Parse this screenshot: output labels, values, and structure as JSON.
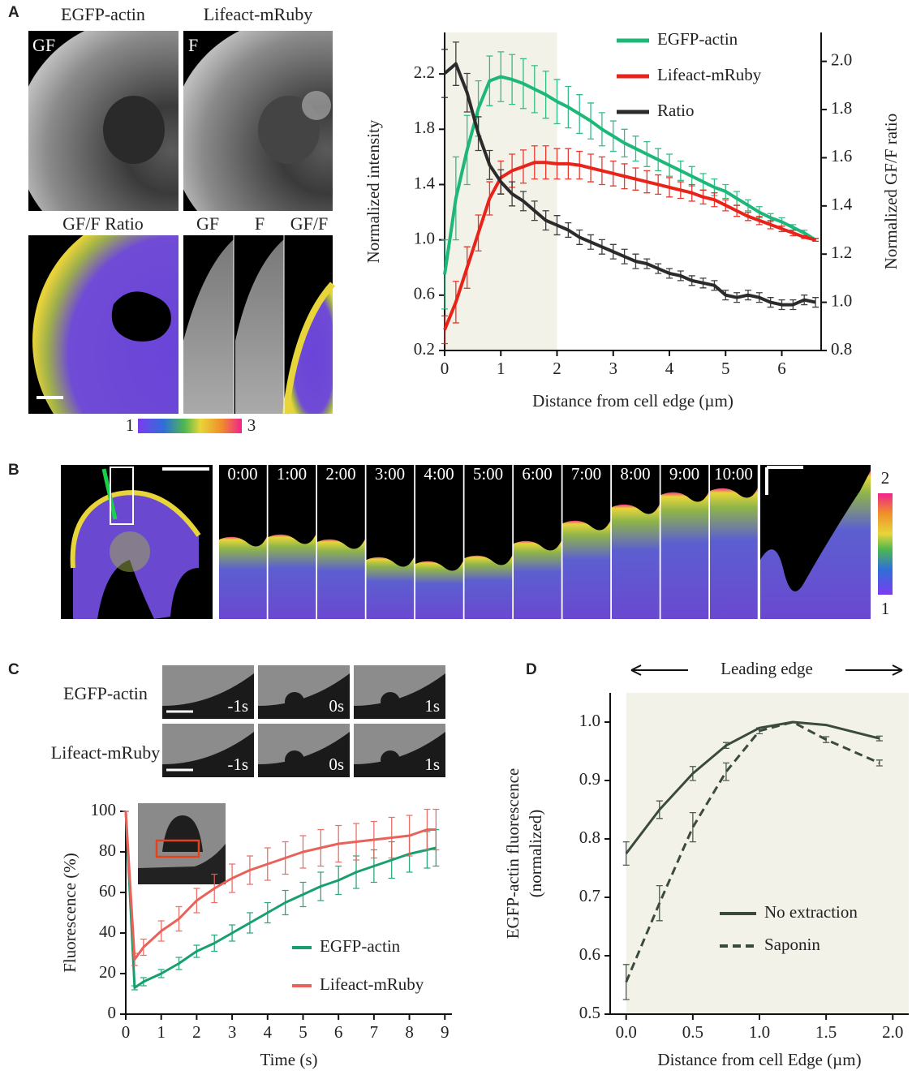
{
  "panel_labels": [
    "A",
    "B",
    "C",
    "D"
  ],
  "panel_a_images": {
    "top": [
      "EGFP-actin",
      "Lifeact-mRuby"
    ],
    "insets": [
      "GF",
      "F"
    ],
    "ratio_title": "GF/F Ratio",
    "kymo": [
      "GF",
      "F",
      "GF/F"
    ],
    "colorbar": [
      1,
      3
    ]
  },
  "panel_b": {
    "times": [
      "0:00",
      "1:00",
      "2:00",
      "3:00",
      "4:00",
      "5:00",
      "6:00",
      "7:00",
      "8:00",
      "9:00",
      "10:00"
    ],
    "colorbar": [
      2,
      1
    ]
  },
  "panel_c_images": {
    "rows": [
      "EGFP-actin",
      "Lifeact-mRuby"
    ],
    "times": [
      "-1s",
      "0s",
      "1s"
    ]
  },
  "chart_data": [
    {
      "type": "line",
      "xlabel": "Distance from cell edge (µm)",
      "ylabel": "Normalized intensity",
      "y2label": "Normalized GF/F ratio",
      "x": [
        0,
        0.2,
        0.4,
        0.6,
        0.8,
        1.0,
        1.2,
        1.4,
        1.6,
        1.8,
        2.0,
        2.2,
        2.4,
        2.6,
        2.8,
        3.0,
        3.2,
        3.4,
        3.6,
        3.8,
        4.0,
        4.2,
        4.4,
        4.6,
        4.8,
        5.0,
        5.2,
        5.4,
        5.6,
        5.8,
        6.0,
        6.2,
        6.4,
        6.6
      ],
      "series": [
        {
          "name": "EGFP-actin",
          "color": "#1db77a",
          "values": [
            0.75,
            1.3,
            1.65,
            1.95,
            2.15,
            2.18,
            2.16,
            2.13,
            2.09,
            2.05,
            2.0,
            1.96,
            1.91,
            1.86,
            1.8,
            1.75,
            1.7,
            1.66,
            1.62,
            1.58,
            1.54,
            1.5,
            1.46,
            1.42,
            1.38,
            1.35,
            1.3,
            1.25,
            1.2,
            1.16,
            1.13,
            1.09,
            1.05,
            1.0
          ],
          "errors": [
            0.25,
            0.3,
            0.25,
            0.2,
            0.18,
            0.18,
            0.18,
            0.18,
            0.17,
            0.17,
            0.16,
            0.15,
            0.14,
            0.13,
            0.12,
            0.11,
            0.1,
            0.09,
            0.09,
            0.08,
            0.08,
            0.07,
            0.07,
            0.06,
            0.06,
            0.05,
            0.05,
            0.04,
            0.04,
            0.03,
            0.03,
            0.02,
            0.02,
            0.01
          ]
        },
        {
          "name": "Lifeact-mRuby",
          "color": "#e8231a",
          "values": [
            0.35,
            0.55,
            0.8,
            1.05,
            1.3,
            1.45,
            1.5,
            1.53,
            1.56,
            1.56,
            1.55,
            1.55,
            1.54,
            1.52,
            1.5,
            1.48,
            1.46,
            1.44,
            1.42,
            1.4,
            1.38,
            1.36,
            1.34,
            1.31,
            1.29,
            1.25,
            1.21,
            1.17,
            1.14,
            1.11,
            1.08,
            1.05,
            1.02,
            1.0
          ],
          "errors": [
            0.1,
            0.15,
            0.15,
            0.13,
            0.12,
            0.12,
            0.12,
            0.12,
            0.12,
            0.12,
            0.11,
            0.11,
            0.1,
            0.1,
            0.1,
            0.09,
            0.09,
            0.08,
            0.08,
            0.07,
            0.07,
            0.06,
            0.06,
            0.05,
            0.05,
            0.04,
            0.04,
            0.03,
            0.03,
            0.03,
            0.02,
            0.02,
            0.01,
            0.01
          ]
        },
        {
          "name": "Ratio",
          "color": "#2b2b2b",
          "axis": "y2",
          "values": [
            1.95,
            1.99,
            1.87,
            1.7,
            1.57,
            1.5,
            1.45,
            1.42,
            1.38,
            1.34,
            1.32,
            1.3,
            1.27,
            1.25,
            1.23,
            1.21,
            1.19,
            1.17,
            1.16,
            1.14,
            1.12,
            1.11,
            1.09,
            1.08,
            1.07,
            1.03,
            1.02,
            1.03,
            1.02,
            1.0,
            0.99,
            0.99,
            1.01,
            1.0
          ],
          "errors": [
            0.1,
            0.09,
            0.08,
            0.07,
            0.06,
            0.05,
            0.05,
            0.04,
            0.04,
            0.04,
            0.04,
            0.03,
            0.03,
            0.03,
            0.03,
            0.03,
            0.03,
            0.03,
            0.02,
            0.02,
            0.02,
            0.02,
            0.02,
            0.02,
            0.02,
            0.02,
            0.02,
            0.02,
            0.02,
            0.02,
            0.02,
            0.02,
            0.02,
            0.02
          ]
        }
      ],
      "xlim": [
        0,
        6.7
      ],
      "xticks": [
        0,
        1,
        2,
        3,
        4,
        5,
        6
      ],
      "ylim": [
        0.2,
        2.5
      ],
      "yticks": [
        0.2,
        0.6,
        {
          "value": 1.0,
          "label": "1.0"
        },
        1.4,
        1.8,
        2.2
      ],
      "y2lim": [
        0.8,
        2.12
      ],
      "y2ticks": [
        0.8,
        {
          "value": 1.0,
          "label": "1.0"
        },
        1.2,
        1.4,
        1.6,
        1.8,
        {
          "value": 2.0,
          "label": "2.0"
        }
      ],
      "highlight": [
        0,
        2
      ],
      "highlight_color": "#f3f2e8",
      "legend": "upper right"
    },
    {
      "type": "line",
      "xlabel": "Time (s)",
      "ylabel": "Fluorescence (%)",
      "x": [
        0,
        0.25,
        0.5,
        1,
        1.5,
        2,
        2.5,
        3,
        3.5,
        4,
        4.5,
        5,
        5.5,
        6,
        6.5,
        7,
        7.5,
        8,
        8.5,
        8.75
      ],
      "series": [
        {
          "name": "EGFP-actin",
          "color": "#17a06e",
          "values": [
            100,
            13,
            16,
            20,
            25,
            31,
            35,
            40,
            45,
            50,
            55,
            59,
            63,
            66,
            70,
            73,
            76,
            79,
            81,
            82
          ],
          "errors": [
            0,
            1,
            2,
            2,
            3,
            3,
            4,
            4,
            5,
            5,
            6,
            6,
            7,
            7,
            8,
            8,
            9,
            9,
            9,
            9
          ]
        },
        {
          "name": "Lifeact-mRuby",
          "color": "#e8625a",
          "values": [
            100,
            27,
            33,
            41,
            47,
            56,
            62,
            67,
            71,
            74,
            77,
            80,
            82,
            84,
            85,
            86,
            87,
            88,
            91,
            91
          ],
          "errors": [
            0,
            3,
            4,
            5,
            6,
            6,
            7,
            7,
            7,
            8,
            8,
            8,
            9,
            9,
            9,
            9,
            10,
            10,
            10,
            10
          ]
        }
      ],
      "xlim": [
        0,
        9.2
      ],
      "xticks": [
        0,
        1,
        2,
        3,
        4,
        5,
        6,
        7,
        8,
        9
      ],
      "ylim": [
        0,
        100
      ],
      "yticks": [
        0,
        20,
        40,
        60,
        80,
        100
      ],
      "legend": "lower right"
    },
    {
      "type": "line",
      "annotation": "Leading edge",
      "xlabel": "Distance from cell Edge (µm)",
      "ylabel": [
        "EGFP-actin fluorescence",
        "(normalized)"
      ],
      "x": [
        0,
        0.25,
        0.5,
        0.75,
        1,
        1.25,
        1.5,
        1.9
      ],
      "series": [
        {
          "name": "No extraction",
          "color": "#3b4a3e",
          "style": "solid",
          "values": [
            0.775,
            0.85,
            0.912,
            0.96,
            0.99,
            1.0,
            0.995,
            0.972
          ],
          "errors": [
            0.02,
            0.015,
            0.012,
            0.005,
            0,
            0,
            0,
            0.004
          ]
        },
        {
          "name": "Saponin",
          "color": "#3b4a3e",
          "style": "dashed",
          "values": [
            0.555,
            0.69,
            0.82,
            0.915,
            0.985,
            1.0,
            0.97,
            0.93
          ],
          "errors": [
            0.03,
            0.03,
            0.025,
            0.015,
            0.005,
            0,
            0.005,
            0.005
          ]
        }
      ],
      "xlim": [
        -0.12,
        2.12
      ],
      "xticks": [
        {
          "value": 0,
          "label": "0.0"
        },
        0.5,
        {
          "value": 1,
          "label": "1.0"
        },
        1.5,
        {
          "value": 2,
          "label": "2.0"
        }
      ],
      "ylim": [
        0.5,
        1.05
      ],
      "yticks": [
        0.5,
        0.6,
        0.7,
        0.8,
        0.9,
        {
          "value": 1,
          "label": "1.0"
        }
      ],
      "highlight": [
        0,
        2.12
      ],
      "highlight_color": "#f3f2e8",
      "legend": "lower right"
    }
  ]
}
